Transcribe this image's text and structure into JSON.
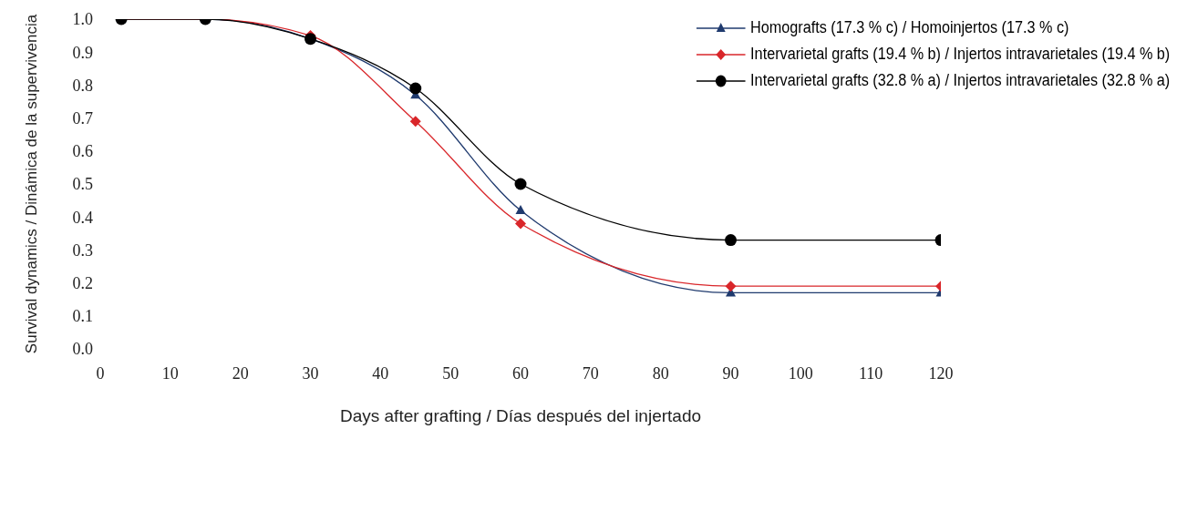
{
  "chart_data": {
    "type": "line",
    "xlabel": "Days after grafting / Días después del injertado",
    "ylabel": "Survival dynamics / Dinámica de la supervivencia",
    "x": [
      3,
      15,
      30,
      45,
      60,
      90,
      120
    ],
    "series": [
      {
        "name": "Homografts (17.3 % c) / Homoinjertos (17.3 % c)",
        "color": "#1f3a6e",
        "marker": "triangle",
        "values": [
          1.0,
          1.0,
          0.94,
          0.77,
          0.42,
          0.17,
          0.17
        ]
      },
      {
        "name": "Intervarietal grafts (19.4 % b) / Injertos intravarietales (19.4 % b)",
        "color": "#d9262a",
        "marker": "diamond",
        "values": [
          1.0,
          1.0,
          0.95,
          0.69,
          0.38,
          0.19,
          0.19
        ]
      },
      {
        "name": "Intervarietal grafts (32.8 % a) / Injertos intravarietales (32.8 % a)",
        "color": "#000000",
        "marker": "circle",
        "values": [
          1.0,
          1.0,
          0.94,
          0.79,
          0.5,
          0.33,
          0.33
        ]
      }
    ],
    "xlim": [
      0,
      120
    ],
    "xticks": [
      0,
      10,
      20,
      30,
      40,
      50,
      60,
      70,
      80,
      90,
      100,
      110,
      120
    ],
    "ylim": [
      0,
      1
    ],
    "yticks": [
      {
        "value": 0,
        "label": "0.0"
      },
      0.1,
      0.2,
      0.3,
      0.4,
      0.5,
      0.6,
      0.7,
      0.8,
      0.9,
      {
        "value": 1,
        "label": "1.0"
      }
    ],
    "grid": false,
    "legend": "top right",
    "line_style": "solid"
  }
}
